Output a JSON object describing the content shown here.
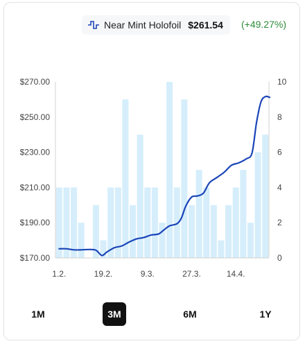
{
  "header": {
    "variant": "Near Mint Holofoil",
    "price": "$261.54",
    "change": "(+49.27%)",
    "icon": "pulse-icon",
    "accent": "#1a44b8",
    "positive": "#2e8b3a"
  },
  "chart_data": {
    "type": "bar+line",
    "x_ticks": [
      "1.2.",
      "19.2.",
      "9.3.",
      "27.3.",
      "14.4."
    ],
    "x_tick_index": [
      0,
      6,
      12,
      18,
      24
    ],
    "y_left": {
      "ticks": [
        "$170.00",
        "$190.00",
        "$210.00",
        "$230.00",
        "$250.00",
        "$270.00"
      ],
      "range": [
        170,
        270
      ]
    },
    "y_right": {
      "ticks": [
        "0",
        "2",
        "4",
        "6",
        "8",
        "10"
      ],
      "range": [
        0,
        10
      ]
    },
    "bars": {
      "name": "",
      "color": "#d6eefb",
      "values": [
        4,
        4,
        4,
        2,
        0,
        3,
        1,
        4,
        4,
        9,
        3,
        7,
        4,
        4,
        2,
        10,
        4,
        9,
        3,
        5,
        4,
        3,
        1,
        3,
        4,
        5,
        2,
        6,
        7
      ]
    },
    "line": {
      "name": "",
      "color": "#1a44b8",
      "points": [
        [
          0,
          175.2
        ],
        [
          1,
          175.2
        ],
        [
          2,
          174.6
        ],
        [
          3,
          174.6
        ],
        [
          4,
          174.8
        ],
        [
          5,
          174.4
        ],
        [
          5.8,
          171.4
        ],
        [
          6.5,
          173.4
        ],
        [
          7.5,
          175.8
        ],
        [
          8.5,
          176.8
        ],
        [
          9.5,
          179.0
        ],
        [
          10.5,
          180.8
        ],
        [
          11.5,
          181.6
        ],
        [
          12.5,
          183.0
        ],
        [
          13.5,
          183.6
        ],
        [
          14.2,
          185.8
        ],
        [
          15,
          188.2
        ],
        [
          16,
          189.4
        ],
        [
          16.6,
          192.6
        ],
        [
          17.2,
          199.4
        ],
        [
          18,
          204.6
        ],
        [
          18.8,
          205.2
        ],
        [
          19.6,
          206.8
        ],
        [
          20.4,
          212.6
        ],
        [
          21.4,
          215.6
        ],
        [
          22.4,
          218.6
        ],
        [
          23.4,
          222.6
        ],
        [
          24.4,
          224.0
        ],
        [
          25.4,
          226.2
        ],
        [
          26.2,
          229.6
        ],
        [
          26.8,
          246.6
        ],
        [
          27.4,
          258.4
        ],
        [
          28,
          261.6
        ],
        [
          28.6,
          261.2
        ]
      ]
    },
    "grid": false,
    "legend": "none"
  },
  "ranges": {
    "items": [
      "1M",
      "3M",
      "6M",
      "1Y"
    ],
    "active": "3M"
  }
}
